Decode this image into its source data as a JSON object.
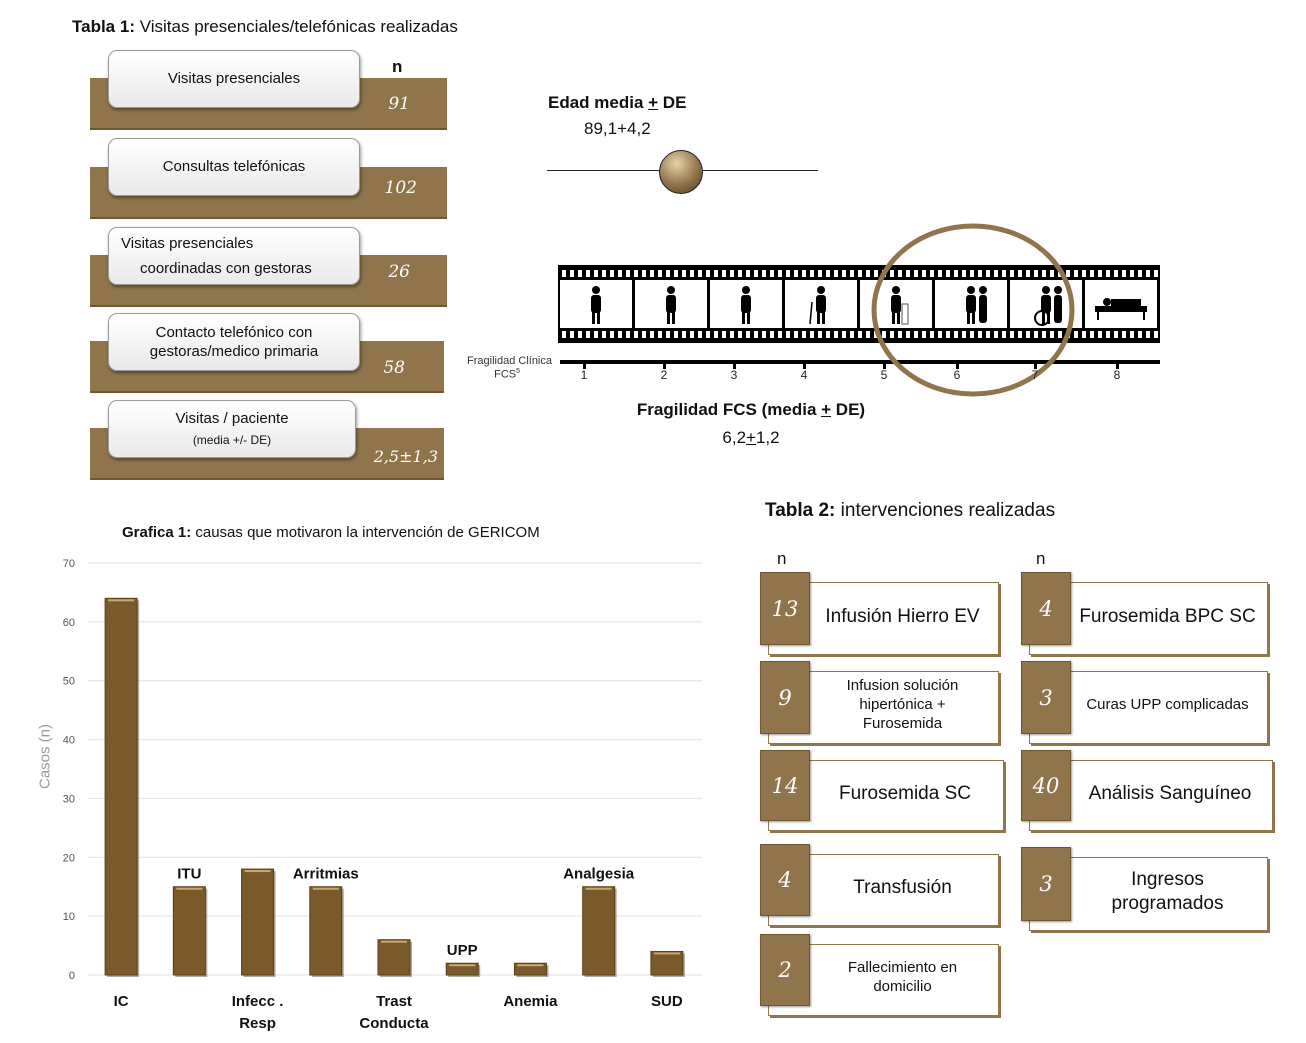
{
  "table1": {
    "title_bold": "Tabla 1:",
    "title_rest": " Visitas presenciales/telefónicas realizadas",
    "n_header": "n",
    "rows": [
      {
        "label": "Visitas presenciales",
        "sub": "",
        "value": "91"
      },
      {
        "label": "Consultas telefónicas",
        "sub": "",
        "value": "102"
      },
      {
        "label": "Visitas presenciales",
        "sub": "coordinadas con gestoras",
        "value": "26"
      },
      {
        "label": "Contacto telefónico  con",
        "sub": "gestoras/medico primaria",
        "value": "58"
      },
      {
        "label": "Visitas / paciente",
        "sub": "(media +/- DE)",
        "value": "2,5±1,3"
      }
    ]
  },
  "edad": {
    "title_pre": "Edad media ",
    "title_sym": "+",
    "title_post": " DE",
    "value": "89,1+4,2",
    "slider_color": "#8f744c"
  },
  "fragilidad": {
    "scale_label_line1": "Fragilidad Clínica",
    "scale_label_line2": "FCS",
    "scale_label_sup": "5",
    "scale": [
      "1",
      "2",
      "3",
      "4",
      "5",
      "6",
      "7",
      "8"
    ],
    "title_pre": "Fragilidad FCS (media ",
    "title_sym": "+",
    "title_post": " DE)",
    "value_pre": "6,2",
    "value_sym": "+",
    "value_post": "1,2",
    "highlight_color": "#8f744c"
  },
  "chart_data": {
    "type": "bar",
    "title_bold": "Grafica 1:",
    "title": " causas que motivaron la intervención de GERICOM",
    "ylabel": "Casos (n)",
    "xlabel": "",
    "ylim": [
      0,
      70
    ],
    "yticks": [
      "0",
      "10",
      "20",
      "30",
      "40",
      "50",
      "60",
      "70"
    ],
    "grid": true,
    "bar_color": "#7a5a2a",
    "categories": [
      {
        "label": "IC",
        "value": 64,
        "label_pos": "below"
      },
      {
        "label": "ITU",
        "value": 15,
        "label_pos": "above"
      },
      {
        "label": "Infecc .\nResp",
        "value": 18,
        "label_pos": "below"
      },
      {
        "label": "Arritmias",
        "value": 15,
        "label_pos": "above"
      },
      {
        "label": "Trast\nConducta",
        "value": 6,
        "label_pos": "below"
      },
      {
        "label": "UPP",
        "value": 2,
        "label_pos": "above"
      },
      {
        "label": "Anemia",
        "value": 2,
        "label_pos": "below"
      },
      {
        "label": "Analgesia",
        "value": 15,
        "label_pos": "above"
      },
      {
        "label": "SUD",
        "value": 4,
        "label_pos": "below"
      }
    ]
  },
  "table2": {
    "title_bold": "Tabla 2:",
    "title_rest": " intervenciones realizadas",
    "n_header_left": "n",
    "n_header_right": "n",
    "left": [
      {
        "value": "13",
        "label": "Infusión Hierro EV"
      },
      {
        "value": "9",
        "label": "Infusion solución hipertónica + Furosemida"
      },
      {
        "value": "14",
        "label": "Furosemida SC"
      },
      {
        "value": "4",
        "label": "Transfusión"
      },
      {
        "value": "2",
        "label": "Fallecimiento en domicilio"
      }
    ],
    "right": [
      {
        "value": "4",
        "label": "Furosemida BPC SC"
      },
      {
        "value": "3",
        "label": "Curas UPP complicadas"
      },
      {
        "value": "40",
        "label": "Análisis Sanguíneo"
      },
      {
        "value": "3",
        "label": "Ingresos programados"
      }
    ]
  }
}
